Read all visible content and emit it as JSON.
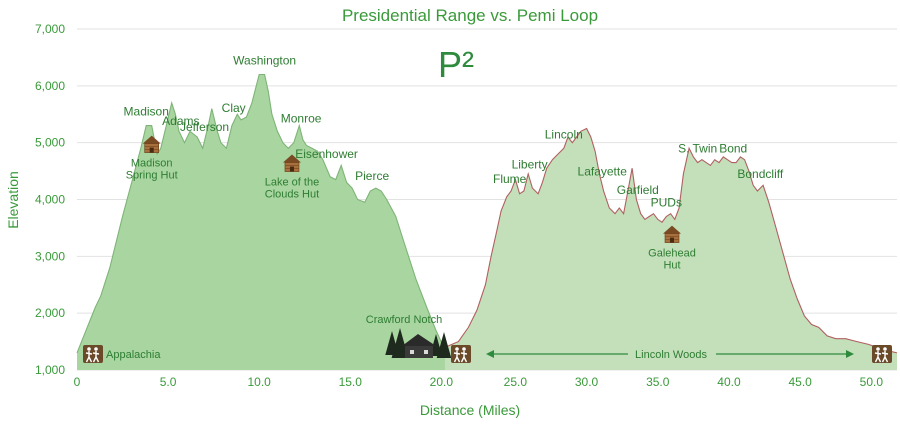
{
  "chart_data": {
    "type": "area",
    "title": "Presidential Range vs. Pemi Loop",
    "logo": "P²",
    "xlabel": "Distance (Miles)",
    "ylabel": "Elevation",
    "ylim": [
      1000,
      7000
    ],
    "yticks": [
      1000,
      2000,
      3000,
      4000,
      5000,
      6000,
      7000
    ],
    "ytick_labels": [
      "1,000",
      "2,000",
      "3,000",
      "4,000",
      "5,000",
      "6,000",
      "7,000"
    ],
    "grid": true,
    "axes_segments": [
      {
        "name": "Presidential Range",
        "xlim": [
          0,
          20.2
        ],
        "xticks": [
          0,
          5,
          10,
          15,
          20
        ],
        "xtick_labels": [
          "0",
          "5.0",
          "10.0",
          "15.0",
          "20.0"
        ]
      },
      {
        "name": "Pemi Loop",
        "xlim": [
          20.2,
          51.8
        ],
        "xticks": [
          25,
          30,
          35,
          40,
          45,
          50
        ],
        "xtick_labels": [
          "25.0",
          "30.0",
          "35.0",
          "40.0",
          "45.0",
          "50.0"
        ]
      }
    ],
    "series": [
      {
        "color": "#a8d5a0",
        "line_color": "#7fb478",
        "x": [
          0,
          0.5,
          1.0,
          1.3,
          1.8,
          2.5,
          3.0,
          3.5,
          3.8,
          4.1,
          4.4,
          4.6,
          4.9,
          5.2,
          5.4,
          5.6,
          5.9,
          6.2,
          6.6,
          6.9,
          7.2,
          7.4,
          7.7,
          7.9,
          8.2,
          8.5,
          8.8,
          9.0,
          9.3,
          9.6,
          9.8,
          10.0,
          10.3,
          10.5,
          10.7,
          11.0,
          11.3,
          11.6,
          11.9,
          12.2,
          12.4,
          12.6,
          12.9,
          13.2,
          13.5,
          13.9,
          14.2,
          14.5,
          14.8,
          15.1,
          15.4,
          15.8,
          16.1,
          16.4,
          16.7,
          17.0,
          17.5,
          18.0,
          18.6,
          19.2,
          19.7,
          20.2
        ],
        "values": [
          1300,
          1700,
          2100,
          2300,
          2800,
          3700,
          4300,
          4900,
          5300,
          5300,
          4800,
          4900,
          5300,
          5700,
          5500,
          5200,
          5000,
          5200,
          5100,
          4900,
          5300,
          5600,
          5200,
          5000,
          4900,
          5300,
          5500,
          5400,
          5450,
          5700,
          5950,
          6200,
          6200,
          5900,
          5500,
          5200,
          5000,
          4900,
          5000,
          5300,
          5050,
          4950,
          4900,
          4850,
          4700,
          4400,
          4350,
          4600,
          4300,
          4200,
          4000,
          3950,
          4150,
          4200,
          4150,
          4000,
          3700,
          3200,
          2600,
          2100,
          1700,
          1350
        ],
        "labels": [
          {
            "text": "Madison",
            "x": 3.8
          },
          {
            "text": "Adams",
            "x": 5.7
          },
          {
            "text": "Jefferson",
            "x": 7.0
          },
          {
            "text": "Clay",
            "x": 8.6
          },
          {
            "text": "Washington",
            "x": 10.3
          },
          {
            "text": "Monroe",
            "x": 12.3
          },
          {
            "text": "Eisenhower",
            "x": 13.7
          },
          {
            "text": "Pierce",
            "x": 16.2
          }
        ],
        "huts": [
          {
            "lines": [
              "Madison",
              "Spring Hut"
            ],
            "x": 4.1
          },
          {
            "lines": [
              "Lake of the",
              "Clouds Hut"
            ],
            "x": 11.8
          }
        ],
        "trailheads": [
          {
            "text": "Appalachia",
            "x": 0.8
          }
        ]
      },
      {
        "color": "#c4e0bb",
        "line_color": "#b06060",
        "x": [
          20.2,
          21.0,
          21.7,
          22.3,
          22.9,
          23.3,
          23.7,
          24.0,
          24.4,
          24.7,
          25.0,
          25.3,
          25.6,
          25.9,
          26.2,
          26.6,
          26.9,
          27.2,
          27.6,
          28.0,
          28.4,
          28.7,
          29.0,
          29.3,
          29.6,
          30.0,
          30.3,
          30.6,
          30.9,
          31.2,
          31.6,
          32.0,
          32.3,
          32.6,
          32.9,
          33.2,
          33.5,
          33.8,
          34.1,
          34.4,
          34.7,
          35.0,
          35.3,
          35.6,
          35.9,
          36.2,
          36.5,
          36.8,
          37.2,
          37.5,
          37.8,
          38.1,
          38.4,
          38.7,
          39.0,
          39.3,
          39.6,
          39.9,
          40.2,
          40.5,
          40.8,
          41.1,
          41.4,
          41.7,
          42.0,
          42.4,
          42.8,
          43.3,
          43.8,
          44.3,
          44.8,
          45.3,
          45.8,
          46.3,
          46.9,
          47.5,
          48.2,
          49.0,
          49.8,
          50.6,
          51.3,
          51.8
        ],
        "values": [
          1400,
          1500,
          1750,
          2050,
          2500,
          3000,
          3450,
          3800,
          4050,
          4150,
          4350,
          4100,
          4150,
          4450,
          4200,
          4100,
          4300,
          4550,
          4700,
          4800,
          4900,
          5100,
          5000,
          5100,
          5200,
          5250,
          5100,
          4850,
          4450,
          4150,
          3850,
          3750,
          3850,
          3750,
          4150,
          4550,
          4000,
          3750,
          3650,
          3700,
          3750,
          3650,
          3600,
          3700,
          3750,
          3650,
          3850,
          4450,
          4900,
          4750,
          4650,
          4700,
          4650,
          4600,
          4700,
          4650,
          4750,
          4700,
          4650,
          4650,
          4750,
          4700,
          4500,
          4250,
          4150,
          4250,
          3950,
          3500,
          3050,
          2600,
          2250,
          1950,
          1800,
          1750,
          1600,
          1550,
          1550,
          1500,
          1450,
          1380,
          1330,
          1300
        ],
        "labels": [
          {
            "text": "Flume",
            "x": 24.6
          },
          {
            "text": "Liberty",
            "x": 26.0
          },
          {
            "text": "Lincoln",
            "x": 28.4
          },
          {
            "text": "Lafayette",
            "x": 31.1
          },
          {
            "text": "Garfield",
            "x": 33.6
          },
          {
            "text": "PUDs",
            "x": 35.6
          },
          {
            "text": "S. Twin",
            "x": 37.8
          },
          {
            "text": "Bond",
            "x": 40.3
          },
          {
            "text": "Bondcliff",
            "x": 42.2
          }
        ],
        "huts": [
          {
            "lines": [
              "Galehead",
              "Hut"
            ],
            "x": 36.0
          }
        ],
        "trailheads": [
          {
            "text": "Crawford Notch",
            "x": 19.6
          },
          {
            "text": "Lincoln Woods",
            "x": 36.0
          }
        ]
      }
    ]
  }
}
